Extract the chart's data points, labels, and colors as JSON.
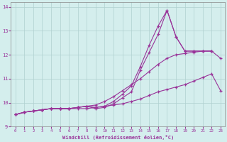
{
  "background_color": "#d4eeed",
  "grid_color": "#b0d0d0",
  "line_color": "#993399",
  "marker": "+",
  "xlabel": "Windchill (Refroidissement éolien,°C)",
  "xlabel_color": "#993399",
  "ylabel_color": "#993399",
  "tick_color": "#993399",
  "xlim": [
    -0.5,
    23.5
  ],
  "ylim": [
    9,
    14.2
  ],
  "yticks": [
    9,
    10,
    11,
    12,
    13,
    14
  ],
  "xticks": [
    0,
    1,
    2,
    3,
    4,
    5,
    6,
    7,
    8,
    9,
    10,
    11,
    12,
    13,
    14,
    15,
    16,
    17,
    18,
    19,
    20,
    21,
    22,
    23
  ],
  "curves": [
    {
      "x": [
        0,
        1,
        2,
        3,
        4,
        5,
        6,
        7,
        8,
        9,
        10,
        11,
        12,
        13,
        14,
        15,
        16,
        17,
        18,
        19,
        20,
        21,
        22,
        23
      ],
      "y": [
        9.5,
        9.6,
        9.65,
        9.7,
        9.75,
        9.75,
        9.75,
        9.75,
        9.75,
        9.8,
        9.85,
        9.9,
        9.95,
        10.05,
        10.15,
        10.3,
        10.45,
        10.55,
        10.65,
        10.75,
        10.9,
        11.05,
        11.2,
        10.5
      ]
    },
    {
      "x": [
        0,
        1,
        2,
        3,
        4,
        5,
        6,
        7,
        8,
        9,
        10,
        11,
        12,
        13,
        14,
        15,
        16,
        17,
        18,
        19,
        20,
        21,
        22,
        23
      ],
      "y": [
        9.5,
        9.6,
        9.65,
        9.7,
        9.75,
        9.75,
        9.75,
        9.8,
        9.85,
        9.9,
        10.05,
        10.25,
        10.5,
        10.75,
        11.0,
        11.3,
        11.6,
        11.85,
        12.0,
        12.05,
        12.1,
        12.15,
        12.15,
        11.85
      ]
    },
    {
      "x": [
        0,
        1,
        2,
        3,
        4,
        5,
        6,
        7,
        8,
        9,
        10,
        11,
        12,
        13,
        14,
        15,
        16,
        17,
        18,
        19,
        20,
        21,
        22,
        23
      ],
      "y": [
        9.5,
        9.6,
        9.65,
        9.7,
        9.75,
        9.75,
        9.75,
        9.8,
        9.85,
        9.8,
        9.85,
        10.05,
        10.35,
        10.7,
        11.5,
        12.4,
        13.2,
        13.85,
        12.75,
        12.15,
        12.15,
        12.15,
        12.15,
        null
      ]
    },
    {
      "x": [
        0,
        1,
        2,
        3,
        4,
        5,
        6,
        7,
        8,
        9,
        10,
        11,
        12,
        13,
        14,
        15,
        16,
        17,
        18,
        19,
        20,
        21,
        22,
        23
      ],
      "y": [
        9.5,
        9.6,
        9.65,
        9.7,
        9.75,
        9.75,
        9.75,
        9.8,
        9.85,
        9.75,
        9.8,
        9.95,
        10.2,
        10.45,
        11.35,
        12.1,
        12.85,
        13.85,
        12.75,
        12.15,
        12.15,
        12.15,
        12.15,
        null
      ]
    }
  ]
}
